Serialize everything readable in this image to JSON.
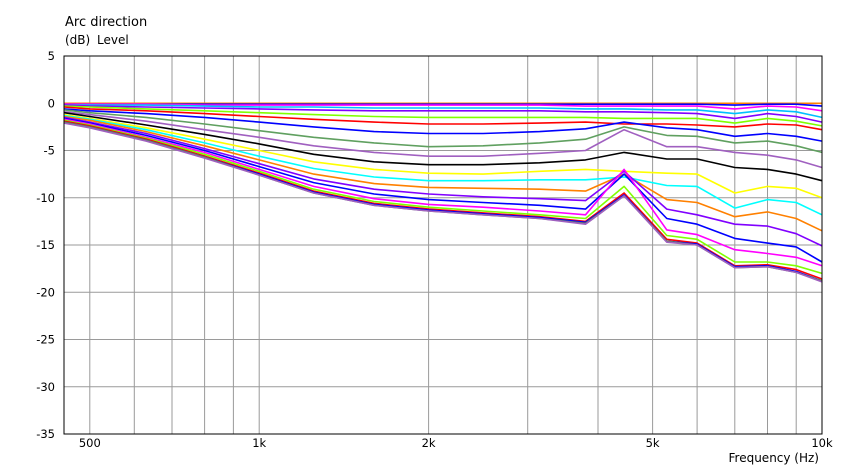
{
  "chart_data": {
    "type": "line",
    "title": "Arc direction",
    "ylabel_unit": "(dB)",
    "ylabel": "Level",
    "xlabel": "Frequency  (Hz)",
    "x_scale": "log",
    "xlim": [
      450,
      10000
    ],
    "ylim": [
      -35,
      5
    ],
    "grid": true,
    "y_ticks": [
      5,
      0,
      -5,
      -10,
      -15,
      -20,
      -25,
      -30,
      -35
    ],
    "y_tick_labels": [
      "5",
      "0",
      "-5",
      "-10",
      "-15",
      "-20",
      "-25",
      "-30",
      "-35"
    ],
    "x_ticks": [
      500,
      1000,
      2000,
      5000,
      10000
    ],
    "x_tick_labels": [
      "500",
      "1k",
      "2k",
      "5k",
      "10k"
    ],
    "x": [
      450,
      500,
      630,
      800,
      1000,
      1250,
      1600,
      2000,
      2500,
      3150,
      3800,
      4450,
      5300,
      6000,
      7000,
      8000,
      9000,
      10000
    ],
    "series": [
      {
        "color": "#FF8000",
        "values": [
          0,
          0,
          0,
          0,
          0,
          0,
          0,
          0,
          0,
          0,
          0,
          0,
          0,
          0,
          0,
          0,
          0,
          0
        ]
      },
      {
        "color": "#0000FF",
        "values": [
          -0.1,
          -0.1,
          -0.1,
          -0.1,
          -0.1,
          -0.1,
          -0.1,
          -0.1,
          -0.1,
          -0.1,
          -0.1,
          -0.1,
          -0.1,
          -0.1,
          -0.2,
          -0.1,
          -0.1,
          -0.3
        ]
      },
      {
        "color": "#FF00FF",
        "values": [
          -0.1,
          -0.1,
          -0.1,
          -0.2,
          -0.2,
          -0.2,
          -0.2,
          -0.2,
          -0.2,
          -0.2,
          -0.3,
          -0.3,
          -0.3,
          -0.3,
          -0.6,
          -0.3,
          -0.4,
          -0.8
        ]
      },
      {
        "color": "#00C0FF",
        "values": [
          -0.2,
          -0.2,
          -0.2,
          -0.3,
          -0.4,
          -0.4,
          -0.5,
          -0.5,
          -0.5,
          -0.5,
          -0.6,
          -0.6,
          -0.7,
          -0.7,
          -1.1,
          -0.7,
          -0.9,
          -1.5
        ]
      },
      {
        "color": "#8000FF",
        "values": [
          -0.2,
          -0.3,
          -0.4,
          -0.5,
          -0.6,
          -0.7,
          -0.8,
          -0.8,
          -0.8,
          -0.8,
          -0.9,
          -0.9,
          -1.0,
          -1.1,
          -1.6,
          -1.1,
          -1.4,
          -2.0
        ]
      },
      {
        "color": "#80FF00",
        "values": [
          -0.3,
          -0.4,
          -0.6,
          -0.8,
          -1.0,
          -1.2,
          -1.4,
          -1.5,
          -1.5,
          -1.5,
          -1.5,
          -1.6,
          -1.6,
          -1.6,
          -2.1,
          -1.6,
          -1.9,
          -2.4
        ]
      },
      {
        "color": "#FF0000",
        "values": [
          -0.4,
          -0.6,
          -0.8,
          -1.1,
          -1.4,
          -1.7,
          -2.0,
          -2.2,
          -2.2,
          -2.1,
          -2.0,
          -2.2,
          -2.2,
          -2.3,
          -2.5,
          -2.2,
          -2.3,
          -2.8
        ]
      },
      {
        "color": "#0000FF",
        "values": [
          -0.6,
          -0.8,
          -1.1,
          -1.5,
          -2.0,
          -2.5,
          -3.0,
          -3.2,
          -3.2,
          -3.0,
          -2.7,
          -2.0,
          -2.6,
          -2.8,
          -3.5,
          -3.2,
          -3.5,
          -4.0
        ]
      },
      {
        "color": "#60A060",
        "values": [
          -0.7,
          -1.0,
          -1.5,
          -2.2,
          -2.9,
          -3.6,
          -4.2,
          -4.6,
          -4.5,
          -4.2,
          -3.8,
          -2.5,
          -3.4,
          -3.5,
          -4.2,
          -4.0,
          -4.5,
          -5.2
        ]
      },
      {
        "color": "#A060C0",
        "values": [
          -0.9,
          -1.2,
          -1.9,
          -2.8,
          -3.6,
          -4.5,
          -5.2,
          -5.6,
          -5.6,
          -5.3,
          -5.0,
          -2.8,
          -4.6,
          -4.6,
          -5.2,
          -5.5,
          -6.0,
          -6.8
        ]
      },
      {
        "color": "#000000",
        "values": [
          -1.0,
          -1.4,
          -2.3,
          -3.3,
          -4.3,
          -5.4,
          -6.2,
          -6.5,
          -6.5,
          -6.3,
          -6.0,
          -5.2,
          -5.9,
          -5.9,
          -6.8,
          -7.0,
          -7.5,
          -8.2
        ]
      },
      {
        "color": "#FFFF00",
        "values": [
          -1.2,
          -1.6,
          -2.6,
          -3.8,
          -5.0,
          -6.2,
          -7.0,
          -7.4,
          -7.5,
          -7.2,
          -7.0,
          -7.2,
          -7.4,
          -7.5,
          -9.5,
          -8.8,
          -9.0,
          -10.0
        ]
      },
      {
        "color": "#00FFFF",
        "values": [
          -1.3,
          -1.7,
          -2.8,
          -4.2,
          -5.6,
          -6.9,
          -7.8,
          -8.2,
          -8.2,
          -8.1,
          -8.1,
          -7.8,
          -8.7,
          -8.8,
          -11.1,
          -10.2,
          -10.5,
          -11.8
        ]
      },
      {
        "color": "#FF8000",
        "values": [
          -1.4,
          -1.8,
          -3.0,
          -4.5,
          -6.0,
          -7.5,
          -8.5,
          -8.9,
          -9.0,
          -9.1,
          -9.3,
          -7.5,
          -10.2,
          -10.5,
          -12.0,
          -11.5,
          -12.2,
          -13.5
        ]
      },
      {
        "color": "#8000FF",
        "values": [
          -1.5,
          -2.0,
          -3.2,
          -4.8,
          -6.4,
          -8.0,
          -9.1,
          -9.6,
          -9.9,
          -10.1,
          -10.3,
          -7.2,
          -11.2,
          -11.8,
          -12.8,
          -13.0,
          -13.8,
          -15.1
        ]
      },
      {
        "color": "#0000FF",
        "values": [
          -1.6,
          -2.1,
          -3.4,
          -5.0,
          -6.7,
          -8.4,
          -9.6,
          -10.2,
          -10.5,
          -10.8,
          -11.2,
          -7.5,
          -12.2,
          -12.8,
          -14.3,
          -14.8,
          -15.2,
          -16.8
        ]
      },
      {
        "color": "#FF00FF",
        "values": [
          -1.7,
          -2.2,
          -3.6,
          -5.2,
          -7.0,
          -8.8,
          -10.1,
          -10.7,
          -11.0,
          -11.4,
          -11.8,
          -7.0,
          -13.4,
          -13.9,
          -15.5,
          -15.9,
          -16.3,
          -17.2
        ]
      },
      {
        "color": "#80FF00",
        "values": [
          -1.8,
          -2.3,
          -3.7,
          -5.4,
          -7.2,
          -9.1,
          -10.4,
          -11.0,
          -11.4,
          -11.8,
          -12.2,
          -8.8,
          -14.0,
          -14.4,
          -16.8,
          -16.8,
          -17.2,
          -18.0
        ]
      },
      {
        "color": "#FF0000",
        "values": [
          -1.9,
          -2.4,
          -3.8,
          -5.6,
          -7.4,
          -9.3,
          -10.6,
          -11.2,
          -11.6,
          -12.0,
          -12.5,
          -9.5,
          -14.4,
          -14.8,
          -17.2,
          -17.1,
          -17.6,
          -18.6
        ]
      },
      {
        "color": "#0000FF",
        "values": [
          -2.0,
          -2.5,
          -3.9,
          -5.7,
          -7.5,
          -9.4,
          -10.7,
          -11.3,
          -11.7,
          -12.1,
          -12.6,
          -9.7,
          -14.6,
          -14.9,
          -17.3,
          -17.2,
          -17.8,
          -18.8
        ]
      },
      {
        "color": "#608060",
        "values": [
          -2.0,
          -2.5,
          -3.9,
          -5.7,
          -7.6,
          -9.5,
          -10.8,
          -11.4,
          -11.8,
          -12.2,
          -12.7,
          -9.8,
          -14.6,
          -15.0,
          -17.4,
          -17.3,
          -17.9,
          -18.8
        ]
      },
      {
        "color": "#A060C0",
        "values": [
          -2.1,
          -2.6,
          -4.0,
          -5.8,
          -7.6,
          -9.5,
          -10.8,
          -11.4,
          -11.8,
          -12.2,
          -12.8,
          -9.8,
          -14.7,
          -15.0,
          -17.4,
          -17.3,
          -17.9,
          -18.9
        ]
      }
    ]
  }
}
